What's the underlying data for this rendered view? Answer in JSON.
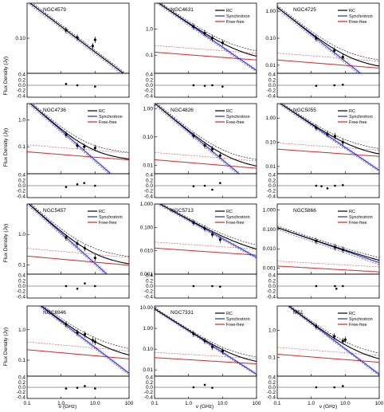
{
  "figure": {
    "ylabel": "Flux Density (Jy)",
    "xlabel": "ν (GHz)",
    "legend_labels": [
      "RC",
      "Synchrotron",
      "Free-free"
    ],
    "colors": {
      "rc": "#000000",
      "sync": "#2a2ac8",
      "ff": "#e02020",
      "dash_sync_light": "#9a9ae8"
    }
  },
  "chart_data": [
    {
      "type": "scatter",
      "name": "NGC4579",
      "legend": false,
      "xscale": "log",
      "yscale": "log",
      "xlim": [
        0.1,
        100
      ],
      "ylim": [
        0.01,
        1.0
      ],
      "ytick_values": [
        0.1
      ],
      "ytick_labels": [
        "0.10"
      ],
      "points": [
        [
          1.4,
          0.17
        ],
        [
          3.0,
          0.105
        ],
        [
          8.5,
          0.06
        ],
        [
          10.0,
          0.09
        ]
      ],
      "fit": {
        "sync_norm": 0.17,
        "sync_alpha": 0.73,
        "ff_norm": 0.0,
        "sync_band": [
          0.15,
          0.19
        ]
      },
      "residuals": [
        [
          1.4,
          0.05
        ],
        [
          3.0,
          0.0
        ],
        [
          10.0,
          -0.05
        ]
      ]
    },
    {
      "type": "scatter",
      "name": "NGC4631",
      "legend": true,
      "xscale": "log",
      "yscale": "log",
      "xlim": [
        0.1,
        100
      ],
      "ylim": [
        0.02,
        10
      ],
      "ytick_values": [
        0.1,
        1.0
      ],
      "ytick_labels": [
        "0.1",
        "1.0"
      ],
      "points": [
        [
          1.4,
          1.25
        ],
        [
          3.0,
          0.7
        ],
        [
          5.0,
          0.45
        ],
        [
          10.0,
          0.3
        ]
      ],
      "fit": {
        "sync_norm": 1.2,
        "sync_alpha": 0.9,
        "ff_norm": 0.1,
        "sync_band": [
          1.05,
          1.35
        ]
      },
      "residuals": [
        [
          1.4,
          0.0
        ],
        [
          3.0,
          -0.02
        ],
        [
          5.0,
          0.0
        ],
        [
          10.0,
          -0.05
        ]
      ]
    },
    {
      "type": "scatter",
      "name": "NGC4725",
      "legend": true,
      "xscale": "log",
      "yscale": "log",
      "xlim": [
        0.1,
        100
      ],
      "ylim": [
        0.005,
        2
      ],
      "ytick_values": [
        0.01,
        0.1,
        1.0
      ],
      "ytick_labels": [
        "0.01",
        "0.10",
        "1.00"
      ],
      "points": [
        [
          1.4,
          0.1
        ],
        [
          4.8,
          0.035
        ],
        [
          8.5,
          0.02
        ]
      ],
      "fit": {
        "sync_norm": 0.1,
        "sync_alpha": 1.0,
        "ff_norm": 0.012,
        "sync_band": [
          0.085,
          0.115
        ]
      },
      "residuals": [
        [
          1.4,
          -0.02
        ],
        [
          4.8,
          0.0
        ],
        [
          8.5,
          0.02
        ]
      ]
    },
    {
      "type": "scatter",
      "name": "NGC4736",
      "legend": true,
      "xscale": "log",
      "yscale": "log",
      "xlim": [
        0.1,
        100
      ],
      "ylim": [
        0.01,
        4
      ],
      "ytick_values": [
        0.1,
        1.0
      ],
      "ytick_labels": [
        "0.1",
        "1.0"
      ],
      "points": [
        [
          1.4,
          0.28
        ],
        [
          3.0,
          0.11
        ],
        [
          4.8,
          0.1
        ],
        [
          10.0,
          0.09
        ]
      ],
      "fit": {
        "sync_norm": 0.28,
        "sync_alpha": 1.1,
        "ff_norm": 0.05,
        "sync_band": [
          0.24,
          0.32
        ]
      },
      "residuals": [
        [
          1.4,
          -0.05
        ],
        [
          3.0,
          0.05
        ],
        [
          4.8,
          0.1
        ],
        [
          10.0,
          0.0
        ]
      ]
    },
    {
      "type": "scatter",
      "name": "NGC4826",
      "legend": true,
      "xscale": "log",
      "yscale": "log",
      "xlim": [
        0.1,
        100
      ],
      "ylim": [
        0.005,
        1.5
      ],
      "ytick_values": [
        0.01,
        0.1,
        1.0
      ],
      "ytick_labels": [
        "0.01",
        "0.10",
        "1.00"
      ],
      "points": [
        [
          1.4,
          0.11
        ],
        [
          3.0,
          0.05
        ],
        [
          5.0,
          0.037
        ],
        [
          8.5,
          0.022
        ]
      ],
      "fit": {
        "sync_norm": 0.11,
        "sync_alpha": 1.0,
        "ff_norm": 0.012,
        "sync_band": [
          0.095,
          0.125
        ]
      },
      "residuals": [
        [
          1.4,
          -0.02
        ],
        [
          3.0,
          0.0
        ],
        [
          5.0,
          -0.15
        ],
        [
          8.5,
          0.1
        ]
      ]
    },
    {
      "type": "scatter",
      "name": "NGC5055",
      "legend": true,
      "xscale": "log",
      "yscale": "log",
      "xlim": [
        0.1,
        100
      ],
      "ylim": [
        0.005,
        4
      ],
      "ytick_values": [
        0.01,
        0.1,
        1.0
      ],
      "ytick_labels": [
        "0.01",
        "0.10",
        "1.00"
      ],
      "points": [
        [
          1.4,
          0.4
        ],
        [
          3.0,
          0.22
        ],
        [
          5.0,
          0.18
        ],
        [
          8.5,
          0.1
        ]
      ],
      "fit": {
        "sync_norm": 0.4,
        "sync_alpha": 0.95,
        "ff_norm": 0.04,
        "sync_band": [
          0.35,
          0.45
        ]
      },
      "residuals": [
        [
          1.4,
          0.0
        ],
        [
          2.0,
          -0.02
        ],
        [
          3.0,
          -0.1
        ],
        [
          5.0,
          0.0
        ],
        [
          8.5,
          0.02
        ]
      ]
    },
    {
      "type": "scatter",
      "name": "NGC5457",
      "legend": true,
      "xscale": "log",
      "yscale": "log",
      "xlim": [
        0.1,
        100
      ],
      "ylim": [
        0.05,
        10
      ],
      "ytick_values": [
        0.1,
        1.0
      ],
      "ytick_labels": [
        "0.1",
        "1.0"
      ],
      "points": [
        [
          1.4,
          0.8
        ],
        [
          3.0,
          0.5
        ],
        [
          5.0,
          0.35
        ],
        [
          10.0,
          0.17
        ]
      ],
      "fit": {
        "sync_norm": 0.8,
        "sync_alpha": 1.0,
        "ff_norm": 0.15,
        "sync_band": [
          0.7,
          0.9
        ]
      },
      "residuals": [
        [
          1.4,
          0.0
        ],
        [
          3.0,
          -0.1
        ],
        [
          5.0,
          0.1
        ],
        [
          10.0,
          0.0
        ]
      ]
    },
    {
      "type": "scatter",
      "name": "NGC5713",
      "legend": true,
      "xscale": "log",
      "yscale": "log",
      "xlim": [
        0.1,
        100
      ],
      "ylim": [
        0.001,
        1.0
      ],
      "ytick_values": [
        0.001,
        0.01,
        0.1,
        1.0
      ],
      "ytick_labels": [
        "0.001",
        "0.010",
        "0.100",
        "1.000"
      ],
      "points": [
        [
          1.4,
          0.16
        ],
        [
          3.0,
          0.09
        ],
        [
          5.0,
          0.05
        ],
        [
          8.5,
          0.03
        ]
      ],
      "fit": {
        "sync_norm": 0.16,
        "sync_alpha": 0.8,
        "ff_norm": 0.01,
        "sync_band": [
          0.14,
          0.18
        ]
      },
      "residuals": [
        [
          1.4,
          0.0
        ],
        [
          5.0,
          0.0
        ],
        [
          8.5,
          -0.02
        ]
      ]
    },
    {
      "type": "scatter",
      "name": "NGC5866",
      "legend": true,
      "xscale": "log",
      "yscale": "log",
      "xlim": [
        0.1,
        100
      ],
      "ylim": [
        0.0005,
        2
      ],
      "ytick_values": [
        0.001,
        0.01,
        0.1,
        1.0
      ],
      "ytick_labels": [
        "0.001",
        "0.010",
        "0.100",
        "1.000"
      ],
      "points": [
        [
          1.4,
          0.025
        ],
        [
          5.0,
          0.012
        ],
        [
          8.5,
          0.009
        ]
      ],
      "fit": {
        "sync_norm": 0.025,
        "sync_alpha": 0.6,
        "ff_norm": 0.001,
        "sync_band": [
          0.02,
          0.03
        ]
      },
      "residuals": [
        [
          1.4,
          0.0
        ],
        [
          5.0,
          0.0
        ],
        [
          5.5,
          -0.1
        ],
        [
          8.5,
          0.0
        ]
      ]
    },
    {
      "type": "scatter",
      "name": "NGC6946",
      "legend": false,
      "xscale": "log",
      "yscale": "log",
      "xlim": [
        0.1,
        100
      ],
      "ylim": [
        0.03,
        6
      ],
      "ytick_values": [
        0.1,
        1.0
      ],
      "ytick_labels": [
        "0.1",
        "1.0"
      ],
      "points": [
        [
          1.4,
          1.5
        ],
        [
          3.0,
          0.8
        ],
        [
          5.0,
          0.7
        ],
        [
          8.5,
          0.45
        ],
        [
          10.0,
          0.4
        ]
      ],
      "fit": {
        "sync_norm": 1.4,
        "sync_alpha": 0.85,
        "ff_norm": 0.17,
        "sync_band": [
          1.25,
          1.55
        ]
      },
      "residuals": [
        [
          1.4,
          -0.05
        ],
        [
          3.0,
          -0.02
        ],
        [
          5.0,
          0.05
        ],
        [
          10.0,
          -0.05
        ]
      ]
    },
    {
      "type": "scatter",
      "name": "NGC7331",
      "legend": true,
      "xscale": "log",
      "yscale": "log",
      "xlim": [
        0.1,
        100
      ],
      "ylim": [
        0.005,
        12
      ],
      "ytick_values": [
        0.01,
        0.1,
        1.0,
        10.0
      ],
      "ytick_labels": [
        "0.01",
        "0.10",
        "1.00",
        "10.00"
      ],
      "points": [
        [
          1.4,
          0.55
        ],
        [
          3.0,
          0.25
        ],
        [
          5.0,
          0.13
        ],
        [
          10.0,
          0.08
        ]
      ],
      "fit": {
        "sync_norm": 0.55,
        "sync_alpha": 1.05,
        "ff_norm": 0.03,
        "sync_band": [
          0.48,
          0.62
        ]
      },
      "residuals": [
        [
          1.4,
          0.0
        ],
        [
          3.0,
          0.1
        ],
        [
          5.0,
          -0.02
        ]
      ]
    },
    {
      "type": "scatter",
      "name": "M51",
      "legend": true,
      "xscale": "log",
      "yscale": "log",
      "xlim": [
        0.1,
        100
      ],
      "ylim": [
        0.02,
        8
      ],
      "ytick_values": [
        0.1,
        1.0
      ],
      "ytick_labels": [
        "0.1",
        "1.0"
      ],
      "points": [
        [
          1.4,
          1.4
        ],
        [
          4.8,
          0.6
        ],
        [
          8.5,
          0.4
        ],
        [
          10.0,
          0.45
        ]
      ],
      "fit": {
        "sync_norm": 1.35,
        "sync_alpha": 0.95,
        "ff_norm": 0.1,
        "sync_band": [
          1.2,
          1.5
        ]
      },
      "residuals": [
        [
          1.4,
          0.0
        ],
        [
          4.8,
          0.0
        ],
        [
          8.5,
          0.05
        ]
      ]
    }
  ],
  "residual_axis": {
    "ylim": [
      -0.45,
      0.45
    ],
    "tick_labels": [
      "0.4",
      "0.2",
      "0.0",
      "-0.2",
      "-0.4"
    ],
    "tick_values": [
      0.4,
      0.2,
      0.0,
      -0.2,
      -0.4
    ]
  },
  "x_axis_ticks": {
    "values": [
      0.1,
      1.0,
      10.0,
      100.0
    ],
    "labels": [
      "0.1",
      "1.0",
      "10.0",
      "100"
    ]
  }
}
